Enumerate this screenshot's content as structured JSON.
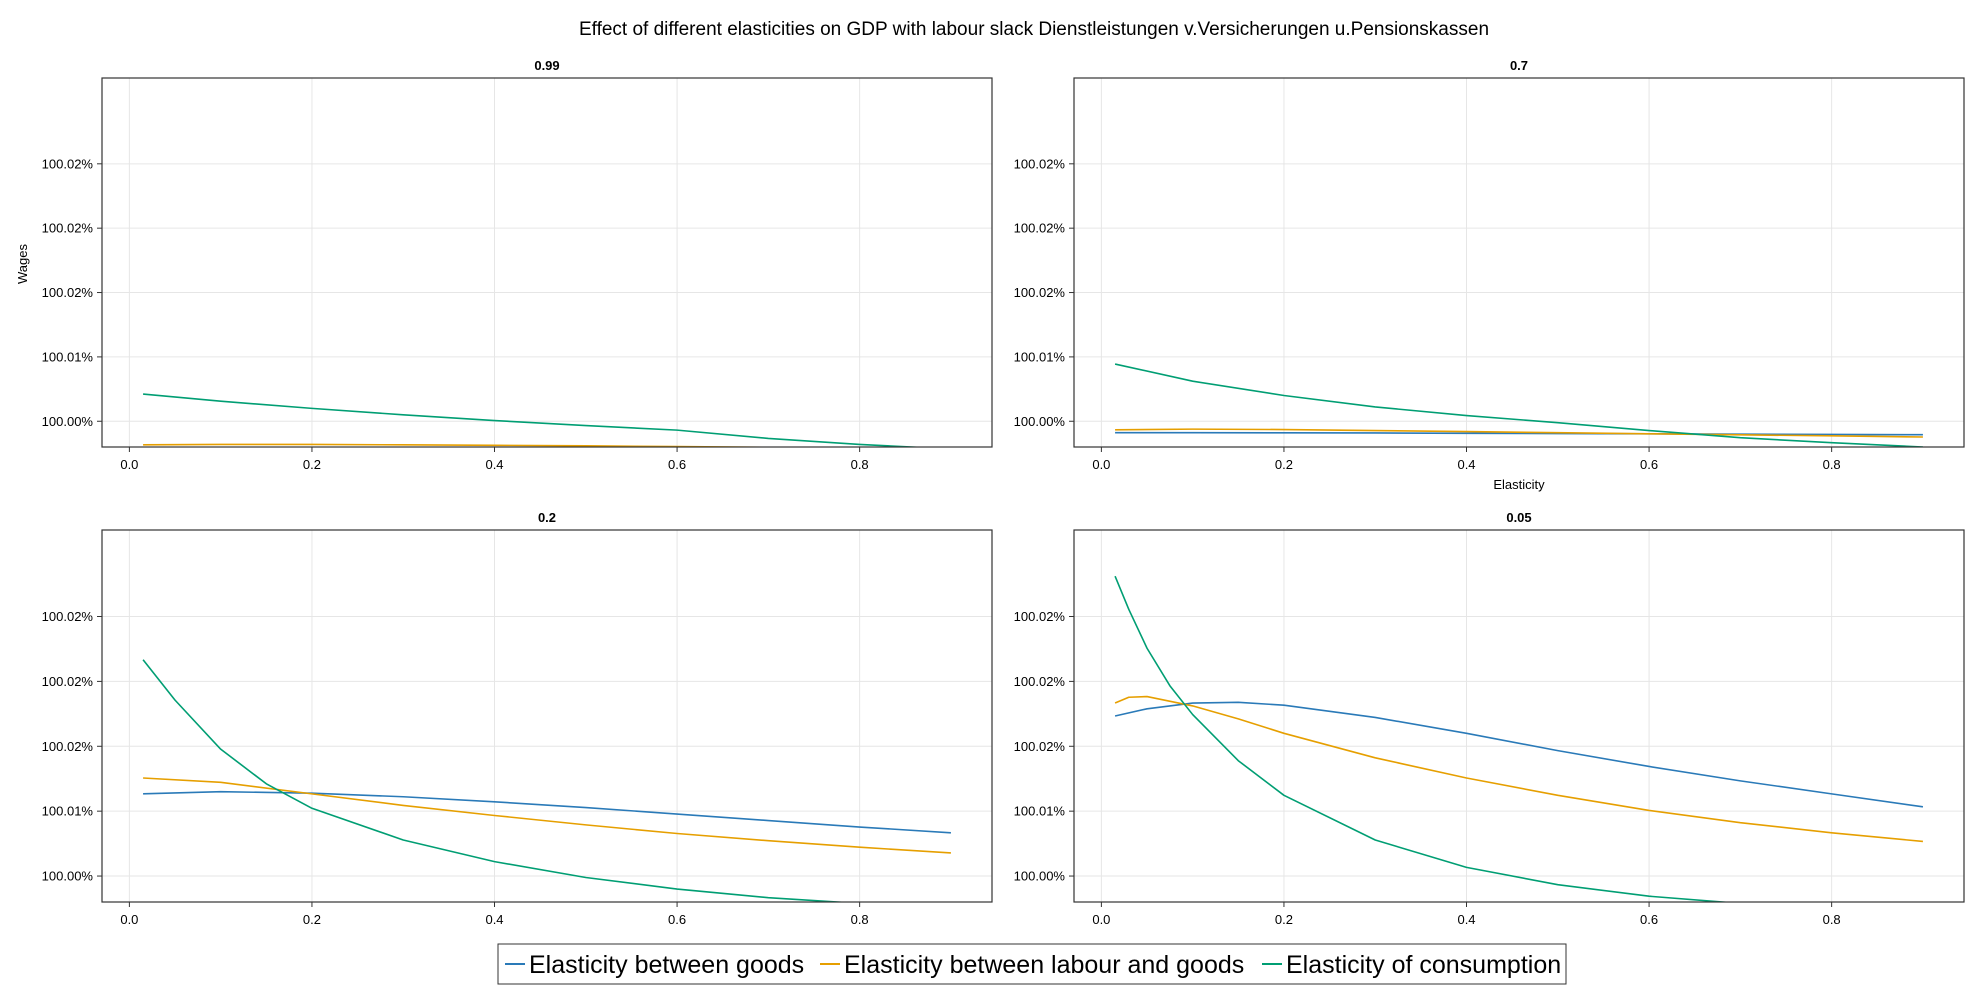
{
  "figure": {
    "title": "Effect of different elasticities on GDP with labour slack Dienstleistungen v.Versicherungen u.Pensionskassen"
  },
  "colors": {
    "Elasticity between goods": "#2a7ab8",
    "Elasticity between labour and goods": "#e69f00",
    "Elasticity of consumption": "#009e73"
  },
  "chart_data": [
    {
      "type": "line",
      "title": "0.99",
      "xlabel": "",
      "ylabel": "Wages",
      "xlim": [
        -0.03,
        0.945
      ],
      "ylim": [
        99.9982,
        100.024
      ],
      "x_ticks": [
        0.0,
        0.2,
        0.4,
        0.6,
        0.8
      ],
      "x_tick_labels": [
        "0.0",
        "0.2",
        "0.4",
        "0.6",
        "0.8"
      ],
      "y_ticks": [
        100.0,
        100.0045,
        100.009,
        100.0135,
        100.018
      ],
      "y_tick_labels": [
        "100.00%",
        "100.01%",
        "100.02%",
        "100.02%",
        "100.02%"
      ],
      "grid": true,
      "series": [
        {
          "name": "Elasticity between goods",
          "x": [
            0.015,
            0.1,
            0.2,
            0.3,
            0.4,
            0.5,
            0.6,
            0.7,
            0.8,
            0.9
          ],
          "y": [
            99.99815,
            99.99815,
            99.99814,
            99.99813,
            99.99812,
            99.99811,
            99.9981,
            99.99809,
            99.99808,
            99.99806
          ]
        },
        {
          "name": "Elasticity between labour and goods",
          "x": [
            0.015,
            0.1,
            0.2,
            0.3,
            0.4,
            0.5,
            0.6,
            0.7,
            0.8,
            0.9
          ],
          "y": [
            99.99835,
            99.99838,
            99.99838,
            99.99835,
            99.99832,
            99.99828,
            99.99823,
            99.99818,
            99.99812,
            99.99806
          ]
        },
        {
          "name": "Elasticity of consumption",
          "x": [
            0.015,
            0.1,
            0.2,
            0.3,
            0.4,
            0.5,
            0.6,
            0.7,
            0.8,
            0.9
          ],
          "y": [
            100.0019,
            100.0014,
            100.0009,
            100.00045,
            100.00005,
            99.9997,
            99.99938,
            99.9988,
            99.99838,
            99.99806
          ]
        }
      ]
    },
    {
      "type": "line",
      "title": "0.7",
      "xlabel": "Elasticity",
      "ylabel": "",
      "xlim": [
        -0.03,
        0.945
      ],
      "ylim": [
        99.9982,
        100.024
      ],
      "x_ticks": [
        0.0,
        0.2,
        0.4,
        0.6,
        0.8
      ],
      "x_tick_labels": [
        "0.0",
        "0.2",
        "0.4",
        "0.6",
        "0.8"
      ],
      "y_ticks": [
        100.0,
        100.0045,
        100.009,
        100.0135,
        100.018
      ],
      "y_tick_labels": [
        "100.00%",
        "100.01%",
        "100.02%",
        "100.02%",
        "100.02%"
      ],
      "grid": true,
      "series": [
        {
          "name": "Elasticity between goods",
          "x": [
            0.015,
            0.1,
            0.2,
            0.3,
            0.4,
            0.5,
            0.6,
            0.7,
            0.8,
            0.9
          ],
          "y": [
            99.9992,
            99.9992,
            99.99919,
            99.99918,
            99.99916,
            99.99914,
            99.99912,
            99.9991,
            99.99908,
            99.99906
          ]
        },
        {
          "name": "Elasticity between labour and goods",
          "x": [
            0.015,
            0.1,
            0.2,
            0.3,
            0.4,
            0.5,
            0.6,
            0.7,
            0.8,
            0.9
          ],
          "y": [
            99.9994,
            99.99945,
            99.99942,
            99.99935,
            99.99928,
            99.9992,
            99.99912,
            99.99905,
            99.99898,
            99.9989
          ]
        },
        {
          "name": "Elasticity of consumption",
          "x": [
            0.015,
            0.1,
            0.2,
            0.3,
            0.4,
            0.5,
            0.6,
            0.7,
            0.8,
            0.9
          ],
          "y": [
            100.004,
            100.0028,
            100.0018,
            100.001,
            100.0004,
            99.9999,
            99.99935,
            99.99885,
            99.9985,
            99.9982
          ]
        }
      ]
    },
    {
      "type": "line",
      "title": "0.2",
      "xlabel": "",
      "ylabel": "",
      "xlim": [
        -0.03,
        0.945
      ],
      "ylim": [
        99.9982,
        100.024
      ],
      "x_ticks": [
        0.0,
        0.2,
        0.4,
        0.6,
        0.8
      ],
      "x_tick_labels": [
        "0.0",
        "0.2",
        "0.4",
        "0.6",
        "0.8"
      ],
      "y_ticks": [
        100.0,
        100.0045,
        100.009,
        100.0135,
        100.018
      ],
      "y_tick_labels": [
        "100.00%",
        "100.01%",
        "100.02%",
        "100.02%",
        "100.02%"
      ],
      "grid": true,
      "series": [
        {
          "name": "Elasticity between goods",
          "x": [
            0.015,
            0.1,
            0.2,
            0.3,
            0.4,
            0.5,
            0.6,
            0.7,
            0.8,
            0.9
          ],
          "y": [
            100.0057,
            100.00585,
            100.00575,
            100.0055,
            100.00515,
            100.00475,
            100.0043,
            100.00385,
            100.0034,
            100.003
          ]
        },
        {
          "name": "Elasticity between labour and goods",
          "x": [
            0.015,
            0.1,
            0.2,
            0.3,
            0.4,
            0.5,
            0.6,
            0.7,
            0.8,
            0.9
          ],
          "y": [
            100.0068,
            100.0065,
            100.0057,
            100.0049,
            100.0042,
            100.00355,
            100.00295,
            100.00245,
            100.002,
            100.0016
          ]
        },
        {
          "name": "Elasticity of consumption",
          "x": [
            0.015,
            0.05,
            0.1,
            0.15,
            0.2,
            0.3,
            0.4,
            0.5,
            0.6,
            0.7,
            0.8,
            0.9
          ],
          "y": [
            100.015,
            100.0122,
            100.0088,
            100.0064,
            100.0047,
            100.0025,
            100.001,
            99.9999,
            99.9991,
            99.9985,
            99.9981,
            99.99775
          ]
        }
      ]
    },
    {
      "type": "line",
      "title": "0.05",
      "xlabel": "",
      "ylabel": "",
      "xlim": [
        -0.03,
        0.945
      ],
      "ylim": [
        99.9982,
        100.024
      ],
      "x_ticks": [
        0.0,
        0.2,
        0.4,
        0.6,
        0.8
      ],
      "x_tick_labels": [
        "0.0",
        "0.2",
        "0.4",
        "0.6",
        "0.8"
      ],
      "y_ticks": [
        100.0,
        100.0045,
        100.009,
        100.0135,
        100.018
      ],
      "y_tick_labels": [
        "100.00%",
        "100.01%",
        "100.02%",
        "100.02%",
        "100.02%"
      ],
      "grid": true,
      "series": [
        {
          "name": "Elasticity between goods",
          "x": [
            0.015,
            0.05,
            0.1,
            0.15,
            0.2,
            0.3,
            0.4,
            0.5,
            0.6,
            0.7,
            0.8,
            0.9
          ],
          "y": [
            100.0111,
            100.0116,
            100.012,
            100.01205,
            100.01185,
            100.011,
            100.0099,
            100.0087,
            100.0076,
            100.0066,
            100.0057,
            100.0048
          ]
        },
        {
          "name": "Elasticity between labour and goods",
          "x": [
            0.015,
            0.03,
            0.05,
            0.1,
            0.15,
            0.2,
            0.3,
            0.4,
            0.5,
            0.6,
            0.7,
            0.8,
            0.9
          ],
          "y": [
            100.012,
            100.0124,
            100.01245,
            100.0118,
            100.0109,
            100.0099,
            100.0082,
            100.0068,
            100.0056,
            100.00455,
            100.0037,
            100.003,
            100.0024
          ]
        },
        {
          "name": "Elasticity of consumption",
          "x": [
            0.015,
            0.03,
            0.05,
            0.075,
            0.1,
            0.15,
            0.2,
            0.3,
            0.4,
            0.5,
            0.6,
            0.7,
            0.8,
            0.9
          ],
          "y": [
            100.0208,
            100.0185,
            100.0158,
            100.0132,
            100.0112,
            100.008,
            100.0056,
            100.0025,
            100.0006,
            99.9994,
            99.9986,
            99.9981,
            99.9977,
            99.9971
          ]
        }
      ]
    }
  ],
  "legend": {
    "placement": "bottom-center",
    "items": [
      {
        "label": "Elasticity between goods"
      },
      {
        "label": "Elasticity between labour and goods"
      },
      {
        "label": "Elasticity of consumption"
      }
    ]
  }
}
